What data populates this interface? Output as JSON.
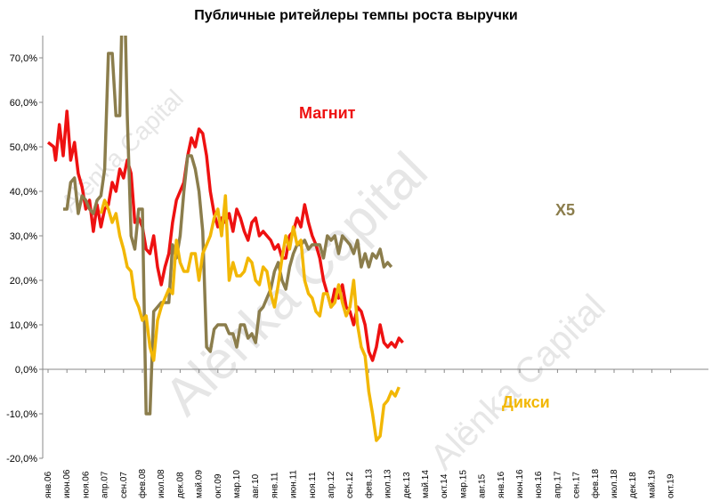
{
  "chart_data": {
    "type": "line",
    "title": "Публичные ритейлеры темпы роста выручки",
    "ylim": [
      -20,
      75
    ],
    "yticks": [
      "-20,0%",
      "-10,0%",
      "0,0%",
      "10,0%",
      "20,0%",
      "30,0%",
      "40,0%",
      "50,0%",
      "60,0%",
      "70,0%"
    ],
    "ytick_values": [
      -20,
      -10,
      0,
      10,
      20,
      30,
      40,
      50,
      60,
      70
    ],
    "x_categories": [
      "янв.06",
      "июн.06",
      "ноя.06",
      "апр.07",
      "сен.07",
      "фев.08",
      "июл.08",
      "дек.08",
      "май.09",
      "окт.09",
      "мар.10",
      "авг.10",
      "янв.11",
      "июн.11",
      "ноя.11",
      "апр.12",
      "сен.12",
      "фев.13",
      "июл.13",
      "дек.13",
      "май.14",
      "окт.14",
      "мар.15",
      "авг.15",
      "янв.16",
      "июн.16",
      "ноя.16",
      "апр.17",
      "сен.17",
      "фев.18",
      "июл.18",
      "дек.18",
      "май.19",
      "окт.19"
    ],
    "grid": false,
    "series": [
      {
        "name": "Магнит",
        "color": "#ee1111",
        "points": [
          [
            0,
            51
          ],
          [
            1.5,
            50
          ],
          [
            2,
            47
          ],
          [
            3,
            55
          ],
          [
            4,
            48
          ],
          [
            5,
            58
          ],
          [
            6,
            47
          ],
          [
            7,
            51
          ],
          [
            8,
            44
          ],
          [
            9,
            41
          ],
          [
            10,
            36
          ],
          [
            11,
            38
          ],
          [
            12,
            31
          ],
          [
            13,
            37
          ],
          [
            14,
            32
          ],
          [
            15,
            36
          ],
          [
            16,
            37
          ],
          [
            17,
            42
          ],
          [
            18,
            40
          ],
          [
            19,
            45
          ],
          [
            20,
            43
          ],
          [
            21,
            47
          ],
          [
            22,
            44
          ],
          [
            23,
            33
          ],
          [
            24,
            34
          ],
          [
            25,
            32
          ],
          [
            26,
            27
          ],
          [
            27,
            26
          ],
          [
            28,
            30
          ],
          [
            29,
            23
          ],
          [
            30,
            19
          ],
          [
            31,
            23
          ],
          [
            32,
            26
          ],
          [
            33,
            33
          ],
          [
            34,
            38
          ],
          [
            35,
            40
          ],
          [
            36,
            42
          ],
          [
            37,
            48
          ],
          [
            38,
            52
          ],
          [
            39,
            50
          ],
          [
            40,
            54
          ],
          [
            41,
            53
          ],
          [
            42,
            48
          ],
          [
            43,
            40
          ],
          [
            44,
            35
          ],
          [
            45,
            32
          ],
          [
            46,
            34
          ],
          [
            47,
            33
          ],
          [
            48,
            35
          ],
          [
            49,
            31
          ],
          [
            50,
            36
          ],
          [
            51,
            34
          ],
          [
            52,
            31
          ],
          [
            53,
            29
          ],
          [
            54,
            33
          ],
          [
            55,
            34
          ],
          [
            56,
            30
          ],
          [
            57,
            31
          ],
          [
            58,
            30
          ],
          [
            59,
            29
          ],
          [
            60,
            27
          ],
          [
            61,
            28
          ],
          [
            62,
            25
          ],
          [
            63,
            25
          ],
          [
            64,
            30
          ],
          [
            65,
            31
          ],
          [
            66,
            34
          ],
          [
            67,
            32
          ],
          [
            68,
            37
          ],
          [
            69,
            33
          ],
          [
            70,
            30
          ],
          [
            71,
            28
          ],
          [
            72,
            25
          ],
          [
            73,
            20
          ],
          [
            74,
            17
          ],
          [
            75,
            14
          ],
          [
            76,
            18
          ],
          [
            77,
            16
          ],
          [
            78,
            19
          ],
          [
            79,
            14
          ],
          [
            80,
            13
          ],
          [
            81,
            10
          ],
          [
            82,
            14
          ],
          [
            83,
            13
          ],
          [
            84,
            10
          ],
          [
            85,
            4
          ],
          [
            86,
            2
          ],
          [
            87,
            5
          ],
          [
            88,
            10
          ],
          [
            89,
            6
          ],
          [
            90,
            5
          ],
          [
            91,
            6
          ],
          [
            92,
            5
          ],
          [
            93,
            7
          ],
          [
            94,
            6
          ]
        ]
      },
      {
        "name": "X5",
        "color": "#8b7d4c",
        "points": [
          [
            4,
            36
          ],
          [
            5,
            36
          ],
          [
            6,
            42
          ],
          [
            7,
            43
          ],
          [
            8,
            35
          ],
          [
            9,
            39
          ],
          [
            10,
            38
          ],
          [
            11,
            36
          ],
          [
            12,
            35
          ],
          [
            13,
            38
          ],
          [
            14,
            39
          ],
          [
            15,
            45
          ],
          [
            16,
            71
          ],
          [
            17,
            71
          ],
          [
            18,
            57
          ],
          [
            19,
            57
          ],
          [
            20,
            95
          ],
          [
            21,
            57
          ],
          [
            22,
            30
          ],
          [
            23,
            27
          ],
          [
            24,
            36
          ],
          [
            25,
            36
          ],
          [
            26,
            -10
          ],
          [
            27,
            -10
          ],
          [
            28,
            13
          ],
          [
            29,
            14
          ],
          [
            30,
            15
          ],
          [
            31,
            15
          ],
          [
            32,
            15
          ],
          [
            33,
            28
          ],
          [
            34,
            25
          ],
          [
            35,
            30
          ],
          [
            36,
            40
          ],
          [
            37,
            48
          ],
          [
            38,
            48
          ],
          [
            39,
            45
          ],
          [
            40,
            40
          ],
          [
            41,
            31
          ],
          [
            42,
            5
          ],
          [
            43,
            4
          ],
          [
            44,
            9
          ],
          [
            45,
            10
          ],
          [
            46,
            10
          ],
          [
            47,
            10
          ],
          [
            48,
            8
          ],
          [
            49,
            8
          ],
          [
            50,
            5
          ],
          [
            51,
            10
          ],
          [
            52,
            10
          ],
          [
            53,
            7
          ],
          [
            54,
            8
          ],
          [
            55,
            6
          ],
          [
            56,
            13
          ],
          [
            57,
            14
          ],
          [
            58,
            16
          ],
          [
            59,
            18
          ],
          [
            60,
            22
          ],
          [
            61,
            24
          ],
          [
            62,
            20
          ],
          [
            63,
            18
          ],
          [
            64,
            23
          ],
          [
            65,
            26
          ],
          [
            66,
            28
          ],
          [
            67,
            28
          ],
          [
            68,
            29
          ],
          [
            69,
            27
          ],
          [
            70,
            28
          ],
          [
            71,
            28
          ],
          [
            72,
            28
          ],
          [
            73,
            25
          ],
          [
            74,
            30
          ],
          [
            75,
            29
          ],
          [
            76,
            30
          ],
          [
            77,
            26
          ],
          [
            78,
            30
          ],
          [
            79,
            29
          ],
          [
            80,
            28
          ],
          [
            81,
            26
          ],
          [
            82,
            29
          ],
          [
            83,
            23
          ],
          [
            84,
            26
          ],
          [
            85,
            23
          ],
          [
            86,
            26
          ],
          [
            87,
            25
          ],
          [
            88,
            27
          ],
          [
            89,
            23
          ],
          [
            90,
            24
          ],
          [
            91,
            23
          ]
        ]
      },
      {
        "name": "Дикси",
        "color": "#f2b705",
        "points": [
          [
            14,
            35
          ],
          [
            15,
            38
          ],
          [
            16,
            36
          ],
          [
            17,
            33
          ],
          [
            18,
            35
          ],
          [
            19,
            30
          ],
          [
            20,
            27
          ],
          [
            21,
            23
          ],
          [
            22,
            22
          ],
          [
            23,
            16
          ],
          [
            24,
            14
          ],
          [
            25,
            11
          ],
          [
            26,
            12
          ],
          [
            27,
            5
          ],
          [
            28,
            2
          ],
          [
            29,
            11
          ],
          [
            30,
            14
          ],
          [
            31,
            16
          ],
          [
            32,
            18
          ],
          [
            33,
            17
          ],
          [
            34,
            29
          ],
          [
            35,
            24
          ],
          [
            36,
            22
          ],
          [
            37,
            22
          ],
          [
            38,
            26
          ],
          [
            39,
            26
          ],
          [
            40,
            20
          ],
          [
            41,
            26
          ],
          [
            42,
            28
          ],
          [
            43,
            30
          ],
          [
            44,
            34
          ],
          [
            45,
            36
          ],
          [
            46,
            30
          ],
          [
            47,
            39
          ],
          [
            48,
            20
          ],
          [
            49,
            24
          ],
          [
            50,
            21
          ],
          [
            51,
            21
          ],
          [
            52,
            22
          ],
          [
            53,
            25
          ],
          [
            54,
            24
          ],
          [
            55,
            20
          ],
          [
            56,
            19
          ],
          [
            57,
            23
          ],
          [
            58,
            22
          ],
          [
            59,
            17
          ],
          [
            60,
            14
          ],
          [
            61,
            19
          ],
          [
            62,
            25
          ],
          [
            63,
            30
          ],
          [
            64,
            27
          ],
          [
            65,
            32
          ],
          [
            66,
            28
          ],
          [
            67,
            29
          ],
          [
            68,
            20
          ],
          [
            69,
            17
          ],
          [
            70,
            16
          ],
          [
            71,
            13
          ],
          [
            72,
            12
          ],
          [
            73,
            17
          ],
          [
            74,
            17
          ],
          [
            75,
            14
          ],
          [
            76,
            15
          ],
          [
            77,
            19
          ],
          [
            78,
            15
          ],
          [
            79,
            12
          ],
          [
            80,
            14
          ],
          [
            81,
            20
          ],
          [
            82,
            10
          ],
          [
            83,
            5
          ],
          [
            84,
            3
          ],
          [
            85,
            -5
          ],
          [
            86,
            -10
          ],
          [
            87,
            -16
          ],
          [
            88,
            -15
          ],
          [
            89,
            -8
          ],
          [
            90,
            -7
          ],
          [
            91,
            -5
          ],
          [
            92,
            -6
          ],
          [
            93,
            -4
          ]
        ]
      }
    ],
    "series_labels": [
      "Магнит",
      "X5",
      "Дикси"
    ]
  },
  "watermark": "Alënka Capital"
}
